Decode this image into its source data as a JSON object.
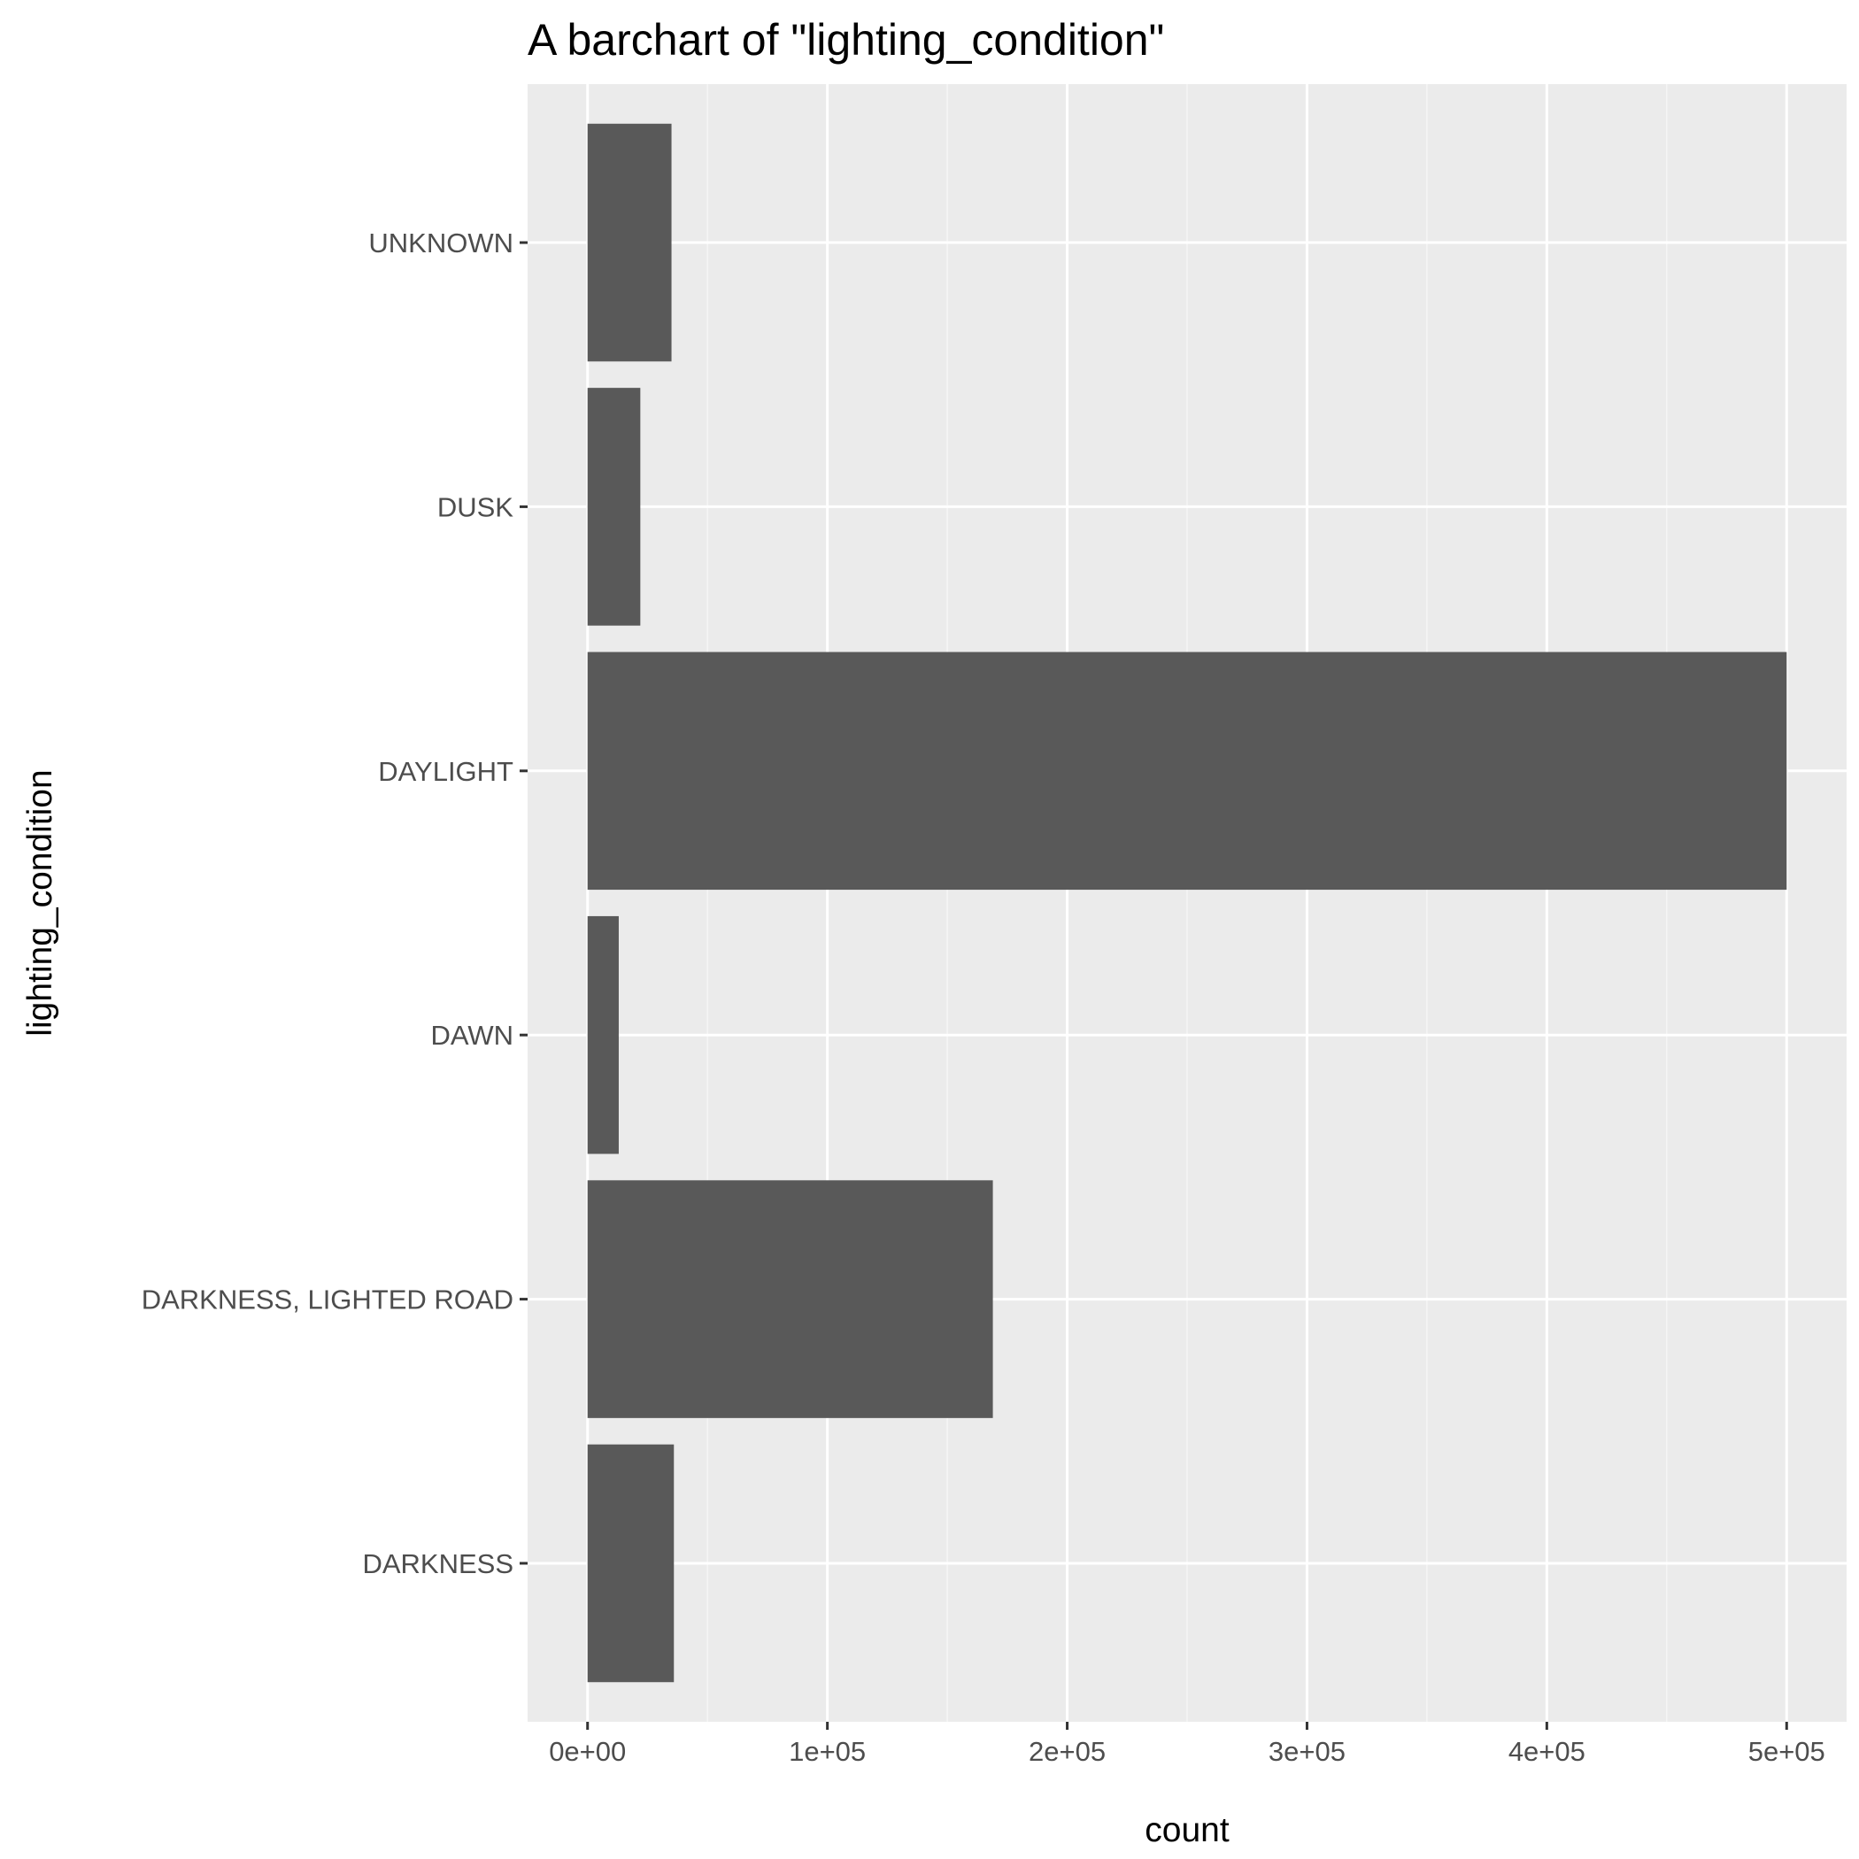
{
  "chart_data": {
    "type": "bar",
    "orientation": "horizontal",
    "title": "A barchart of \"lighting_condition\"",
    "xlabel": "count",
    "ylabel": "lighting_condition",
    "categories": [
      "DARKNESS",
      "DARKNESS, LIGHTED ROAD",
      "DAWN",
      "DAYLIGHT",
      "DUSK",
      "UNKNOWN"
    ],
    "values": [
      36000,
      169000,
      13000,
      500000,
      22000,
      35000
    ],
    "xlim": [
      -25000,
      525000
    ],
    "x_ticks": [
      0,
      100000,
      200000,
      300000,
      400000,
      500000
    ],
    "x_tick_labels": [
      "0e+00",
      "1e+05",
      "2e+05",
      "3e+05",
      "4e+05",
      "5e+05"
    ],
    "grid": true,
    "colors": {
      "bar": "#595959",
      "panel_background": "#ebebeb",
      "grid_major": "#ffffff",
      "grid_minor": "#f5f5f5",
      "tick_mark": "#333333"
    }
  }
}
